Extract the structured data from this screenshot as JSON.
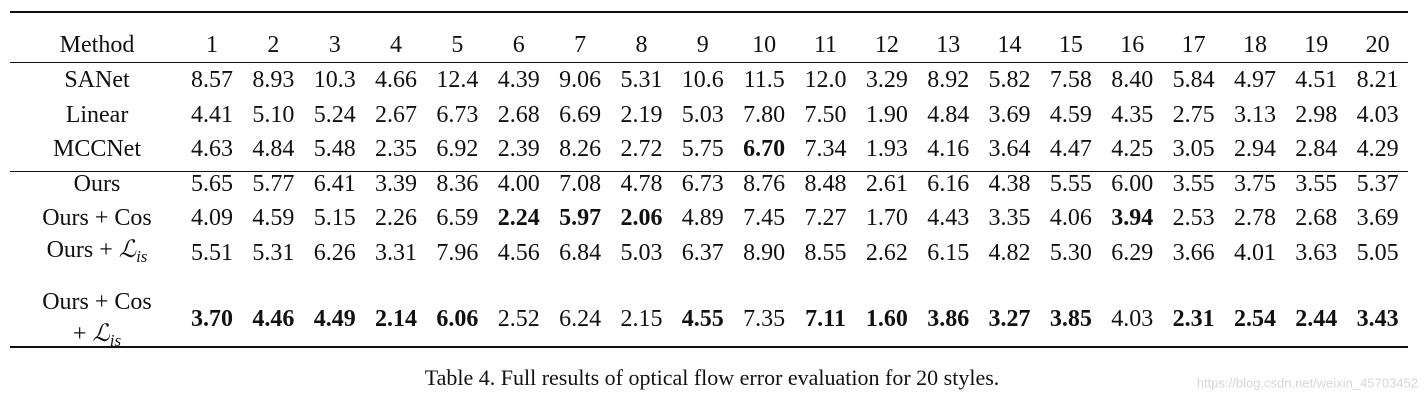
{
  "table": {
    "header": [
      "Method",
      "1",
      "2",
      "3",
      "4",
      "5",
      "6",
      "7",
      "8",
      "9",
      "10",
      "11",
      "12",
      "13",
      "14",
      "15",
      "16",
      "17",
      "18",
      "19",
      "20"
    ],
    "groups": [
      {
        "rows": [
          {
            "method": [
              {
                "text": "SANet"
              }
            ],
            "values": [
              "8.57",
              "8.93",
              "10.3",
              "4.66",
              "12.4",
              "4.39",
              "9.06",
              "5.31",
              "10.6",
              "11.5",
              "12.0",
              "3.29",
              "8.92",
              "5.82",
              "7.58",
              "8.40",
              "5.84",
              "4.97",
              "4.51",
              "8.21"
            ],
            "bold": []
          },
          {
            "method": [
              {
                "text": "Linear"
              }
            ],
            "values": [
              "4.41",
              "5.10",
              "5.24",
              "2.67",
              "6.73",
              "2.68",
              "6.69",
              "2.19",
              "5.03",
              "7.80",
              "7.50",
              "1.90",
              "4.84",
              "3.69",
              "4.59",
              "4.35",
              "2.75",
              "3.13",
              "2.98",
              "4.03"
            ],
            "bold": []
          },
          {
            "method": [
              {
                "text": "MCCNet"
              }
            ],
            "values": [
              "4.63",
              "4.84",
              "5.48",
              "2.35",
              "6.92",
              "2.39",
              "8.26",
              "2.72",
              "5.75",
              "6.70",
              "7.34",
              "1.93",
              "4.16",
              "3.64",
              "4.47",
              "4.25",
              "3.05",
              "2.94",
              "2.84",
              "4.29"
            ],
            "bold": [
              9
            ]
          }
        ]
      },
      {
        "rows": [
          {
            "method": [
              {
                "text": "Ours"
              }
            ],
            "values": [
              "5.65",
              "5.77",
              "6.41",
              "3.39",
              "8.36",
              "4.00",
              "7.08",
              "4.78",
              "6.73",
              "8.76",
              "8.48",
              "2.61",
              "6.16",
              "4.38",
              "5.55",
              "6.00",
              "3.55",
              "3.75",
              "3.55",
              "5.37"
            ],
            "bold": []
          },
          {
            "method": [
              {
                "text": "Ours + Cos"
              }
            ],
            "values": [
              "4.09",
              "4.59",
              "5.15",
              "2.26",
              "6.59",
              "2.24",
              "5.97",
              "2.06",
              "4.89",
              "7.45",
              "7.27",
              "1.70",
              "4.43",
              "3.35",
              "4.06",
              "3.94",
              "2.53",
              "2.78",
              "2.68",
              "3.69"
            ],
            "bold": [
              5,
              6,
              7,
              15
            ]
          },
          {
            "method": [
              {
                "text": "Ours + ",
                "symbol": "ℒ",
                "sub": "is"
              }
            ],
            "values": [
              "5.51",
              "5.31",
              "6.26",
              "3.31",
              "7.96",
              "4.56",
              "6.84",
              "5.03",
              "6.37",
              "8.90",
              "8.55",
              "2.62",
              "6.15",
              "4.82",
              "5.30",
              "6.29",
              "3.66",
              "4.01",
              "3.63",
              "5.05"
            ],
            "bold": []
          },
          {
            "method": [
              {
                "text": "Ours + Cos"
              },
              {
                "text": "+ ",
                "symbol": "ℒ",
                "sub": "is"
              }
            ],
            "values": [
              "3.70",
              "4.46",
              "4.49",
              "2.14",
              "6.06",
              "2.52",
              "6.24",
              "2.15",
              "4.55",
              "7.35",
              "7.11",
              "1.60",
              "3.86",
              "3.27",
              "3.85",
              "4.03",
              "2.31",
              "2.54",
              "2.44",
              "3.43"
            ],
            "bold": [
              0,
              1,
              2,
              3,
              4,
              8,
              10,
              11,
              12,
              13,
              14,
              16,
              17,
              18,
              19
            ]
          }
        ]
      }
    ],
    "caption": "Table 4. Full results of optical flow error evaluation for 20 styles.",
    "watermark": "https://blog.csdn.net/weixin_45703452"
  }
}
